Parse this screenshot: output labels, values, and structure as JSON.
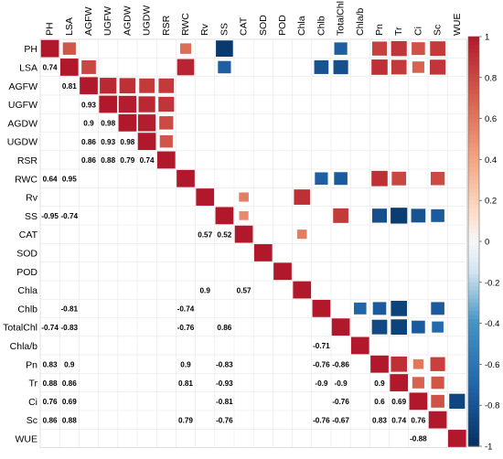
{
  "chart_data": {
    "type": "heatmap",
    "variables": [
      "PH",
      "LSA",
      "AGFW",
      "UGFW",
      "AGDW",
      "UGDW",
      "RSR",
      "RWC",
      "Rv",
      "SS",
      "CAT",
      "SOD",
      "POD",
      "Chla",
      "Chlb",
      "TotalChl",
      "Chla/b",
      "Pn",
      "Tr",
      "Ci",
      "Sc",
      "WUE"
    ],
    "colorbar": {
      "range": [
        -1,
        1
      ],
      "ticks": [
        "1",
        "0.8",
        "0.6",
        "0.4",
        "0.2",
        "0",
        "-0.2",
        "-0.4",
        "-0.6",
        "-0.8",
        "-1"
      ],
      "low_color": "#053061",
      "mid_color": "#f7f7f7",
      "high_color": "#b2182b"
    },
    "upper_cells": [
      {
        "r": "PH",
        "c": "PH",
        "v": 1
      },
      {
        "r": "PH",
        "c": "LSA",
        "v": 0.74
      },
      {
        "r": "PH",
        "c": "RWC",
        "v": 0.64
      },
      {
        "r": "PH",
        "c": "SS",
        "v": -0.95
      },
      {
        "r": "PH",
        "c": "TotalChl",
        "v": -0.74
      },
      {
        "r": "PH",
        "c": "Pn",
        "v": 0.83
      },
      {
        "r": "PH",
        "c": "Tr",
        "v": 0.88
      },
      {
        "r": "PH",
        "c": "Ci",
        "v": 0.76
      },
      {
        "r": "PH",
        "c": "Sc",
        "v": 0.86
      },
      {
        "r": "LSA",
        "c": "LSA",
        "v": 1
      },
      {
        "r": "LSA",
        "c": "AGFW",
        "v": 0.81
      },
      {
        "r": "LSA",
        "c": "RWC",
        "v": 0.95
      },
      {
        "r": "LSA",
        "c": "SS",
        "v": -0.74
      },
      {
        "r": "LSA",
        "c": "Chlb",
        "v": -0.81
      },
      {
        "r": "LSA",
        "c": "TotalChl",
        "v": -0.83
      },
      {
        "r": "LSA",
        "c": "Pn",
        "v": 0.9
      },
      {
        "r": "LSA",
        "c": "Tr",
        "v": 0.86
      },
      {
        "r": "LSA",
        "c": "Ci",
        "v": 0.69
      },
      {
        "r": "LSA",
        "c": "Sc",
        "v": 0.88
      },
      {
        "r": "AGFW",
        "c": "AGFW",
        "v": 1
      },
      {
        "r": "AGFW",
        "c": "UGFW",
        "v": 0.93
      },
      {
        "r": "AGFW",
        "c": "AGDW",
        "v": 0.9
      },
      {
        "r": "AGFW",
        "c": "UGDW",
        "v": 0.86
      },
      {
        "r": "AGFW",
        "c": "RSR",
        "v": 0.86
      },
      {
        "r": "UGFW",
        "c": "UGFW",
        "v": 1
      },
      {
        "r": "UGFW",
        "c": "AGDW",
        "v": 0.98
      },
      {
        "r": "UGFW",
        "c": "UGDW",
        "v": 0.93
      },
      {
        "r": "UGFW",
        "c": "RSR",
        "v": 0.88
      },
      {
        "r": "AGDW",
        "c": "AGDW",
        "v": 1
      },
      {
        "r": "AGDW",
        "c": "UGDW",
        "v": 0.98
      },
      {
        "r": "AGDW",
        "c": "RSR",
        "v": 0.79
      },
      {
        "r": "UGDW",
        "c": "UGDW",
        "v": 1
      },
      {
        "r": "UGDW",
        "c": "RSR",
        "v": 0.74
      },
      {
        "r": "RSR",
        "c": "RSR",
        "v": 1
      },
      {
        "r": "RWC",
        "c": "RWC",
        "v": 1
      },
      {
        "r": "RWC",
        "c": "Chlb",
        "v": -0.74
      },
      {
        "r": "RWC",
        "c": "TotalChl",
        "v": -0.76
      },
      {
        "r": "RWC",
        "c": "Pn",
        "v": 0.9
      },
      {
        "r": "RWC",
        "c": "Tr",
        "v": 0.81
      },
      {
        "r": "RWC",
        "c": "Sc",
        "v": 0.79
      },
      {
        "r": "Rv",
        "c": "Rv",
        "v": 1
      },
      {
        "r": "Rv",
        "c": "CAT",
        "v": 0.57
      },
      {
        "r": "Rv",
        "c": "Chla",
        "v": 0.9
      },
      {
        "r": "SS",
        "c": "SS",
        "v": 1
      },
      {
        "r": "SS",
        "c": "CAT",
        "v": 0.52
      },
      {
        "r": "SS",
        "c": "TotalChl",
        "v": 0.86
      },
      {
        "r": "SS",
        "c": "Pn",
        "v": -0.83
      },
      {
        "r": "SS",
        "c": "Tr",
        "v": -0.93
      },
      {
        "r": "SS",
        "c": "Ci",
        "v": -0.81
      },
      {
        "r": "SS",
        "c": "Sc",
        "v": -0.76
      },
      {
        "r": "CAT",
        "c": "CAT",
        "v": 1
      },
      {
        "r": "CAT",
        "c": "Chla",
        "v": 0.57
      },
      {
        "r": "SOD",
        "c": "SOD",
        "v": 1
      },
      {
        "r": "POD",
        "c": "POD",
        "v": 1
      },
      {
        "r": "Chla",
        "c": "Chla",
        "v": 1
      },
      {
        "r": "Chlb",
        "c": "Chlb",
        "v": 1
      },
      {
        "r": "Chlb",
        "c": "Chla/b",
        "v": -0.71
      },
      {
        "r": "Chlb",
        "c": "Pn",
        "v": -0.76
      },
      {
        "r": "Chlb",
        "c": "Tr",
        "v": -0.9
      },
      {
        "r": "Chlb",
        "c": "Sc",
        "v": -0.76
      },
      {
        "r": "TotalChl",
        "c": "TotalChl",
        "v": 1
      },
      {
        "r": "TotalChl",
        "c": "Pn",
        "v": -0.86
      },
      {
        "r": "TotalChl",
        "c": "Tr",
        "v": -0.9
      },
      {
        "r": "TotalChl",
        "c": "Ci",
        "v": -0.76
      },
      {
        "r": "TotalChl",
        "c": "Sc",
        "v": -0.67
      },
      {
        "r": "Chla/b",
        "c": "Chla/b",
        "v": 1
      },
      {
        "r": "Pn",
        "c": "Pn",
        "v": 1
      },
      {
        "r": "Pn",
        "c": "Tr",
        "v": 0.9
      },
      {
        "r": "Pn",
        "c": "Ci",
        "v": 0.6
      },
      {
        "r": "Pn",
        "c": "Sc",
        "v": 0.83
      },
      {
        "r": "Tr",
        "c": "Tr",
        "v": 1
      },
      {
        "r": "Tr",
        "c": "Ci",
        "v": 0.69
      },
      {
        "r": "Tr",
        "c": "Sc",
        "v": 0.74
      },
      {
        "r": "Ci",
        "c": "Ci",
        "v": 1
      },
      {
        "r": "Ci",
        "c": "Sc",
        "v": 0.76
      },
      {
        "r": "Ci",
        "c": "WUE",
        "v": -0.88
      },
      {
        "r": "Sc",
        "c": "Sc",
        "v": 1
      },
      {
        "r": "WUE",
        "c": "WUE",
        "v": 1
      }
    ],
    "lower_labels": [
      {
        "r": "LSA",
        "c": "PH",
        "text": "0.74"
      },
      {
        "r": "AGFW",
        "c": "LSA",
        "text": "0.81"
      },
      {
        "r": "UGFW",
        "c": "AGFW",
        "text": "0.93"
      },
      {
        "r": "AGDW",
        "c": "AGFW",
        "text": "0.9"
      },
      {
        "r": "AGDW",
        "c": "UGFW",
        "text": "0.98"
      },
      {
        "r": "UGDW",
        "c": "AGFW",
        "text": "0.86"
      },
      {
        "r": "UGDW",
        "c": "UGFW",
        "text": "0.93"
      },
      {
        "r": "UGDW",
        "c": "AGDW",
        "text": "0.98"
      },
      {
        "r": "RSR",
        "c": "AGFW",
        "text": "0.86"
      },
      {
        "r": "RSR",
        "c": "UGFW",
        "text": "0.88"
      },
      {
        "r": "RSR",
        "c": "AGDW",
        "text": "0.79"
      },
      {
        "r": "RSR",
        "c": "UGDW",
        "text": "0.74"
      },
      {
        "r": "RWC",
        "c": "PH",
        "text": "0.64"
      },
      {
        "r": "RWC",
        "c": "LSA",
        "text": "0.95"
      },
      {
        "r": "SS",
        "c": "PH",
        "text": "-0.95"
      },
      {
        "r": "SS",
        "c": "LSA",
        "text": "-0.74"
      },
      {
        "r": "CAT",
        "c": "Rv",
        "text": "0.57"
      },
      {
        "r": "CAT",
        "c": "SS",
        "text": "0.52"
      },
      {
        "r": "Chla",
        "c": "Rv",
        "text": "0.9"
      },
      {
        "r": "Chla",
        "c": "CAT",
        "text": "0.57"
      },
      {
        "r": "Chlb",
        "c": "LSA",
        "text": "-0.81"
      },
      {
        "r": "Chlb",
        "c": "RWC",
        "text": "-0.74"
      },
      {
        "r": "TotalChl",
        "c": "PH",
        "text": "-0.74"
      },
      {
        "r": "TotalChl",
        "c": "LSA",
        "text": "-0.83"
      },
      {
        "r": "TotalChl",
        "c": "RWC",
        "text": "-0.76"
      },
      {
        "r": "TotalChl",
        "c": "SS",
        "text": "0.86"
      },
      {
        "r": "Chla/b",
        "c": "Chlb",
        "text": "-0.71"
      },
      {
        "r": "Pn",
        "c": "PH",
        "text": "0.83"
      },
      {
        "r": "Pn",
        "c": "LSA",
        "text": "0.9"
      },
      {
        "r": "Pn",
        "c": "RWC",
        "text": "0.9"
      },
      {
        "r": "Pn",
        "c": "SS",
        "text": "-0.83"
      },
      {
        "r": "Pn",
        "c": "Chlb",
        "text": "-0.76"
      },
      {
        "r": "Pn",
        "c": "TotalChl",
        "text": "-0.86"
      },
      {
        "r": "Tr",
        "c": "PH",
        "text": "0.88"
      },
      {
        "r": "Tr",
        "c": "LSA",
        "text": "0.86"
      },
      {
        "r": "Tr",
        "c": "RWC",
        "text": "0.81"
      },
      {
        "r": "Tr",
        "c": "SS",
        "text": "-0.93"
      },
      {
        "r": "Tr",
        "c": "Chlb",
        "text": "-0.9"
      },
      {
        "r": "Tr",
        "c": "TotalChl",
        "text": "-0.9"
      },
      {
        "r": "Tr",
        "c": "Pn",
        "text": "0.9"
      },
      {
        "r": "Ci",
        "c": "PH",
        "text": "0.76"
      },
      {
        "r": "Ci",
        "c": "LSA",
        "text": "0.69"
      },
      {
        "r": "Ci",
        "c": "SS",
        "text": "-0.81"
      },
      {
        "r": "Ci",
        "c": "TotalChl",
        "text": "-0.76"
      },
      {
        "r": "Ci",
        "c": "Pn",
        "text": "0.6"
      },
      {
        "r": "Ci",
        "c": "Tr",
        "text": "0.69"
      },
      {
        "r": "Sc",
        "c": "PH",
        "text": "0.86"
      },
      {
        "r": "Sc",
        "c": "LSA",
        "text": "0.88"
      },
      {
        "r": "Sc",
        "c": "RWC",
        "text": "0.79"
      },
      {
        "r": "Sc",
        "c": "SS",
        "text": "-0.76"
      },
      {
        "r": "Sc",
        "c": "Chlb",
        "text": "-0.76"
      },
      {
        "r": "Sc",
        "c": "TotalChl",
        "text": "-0.67"
      },
      {
        "r": "Sc",
        "c": "Pn",
        "text": "0.83"
      },
      {
        "r": "Sc",
        "c": "Tr",
        "text": "0.74"
      },
      {
        "r": "Sc",
        "c": "Ci",
        "text": "0.76"
      },
      {
        "r": "WUE",
        "c": "Ci",
        "text": "-0.88"
      }
    ]
  }
}
